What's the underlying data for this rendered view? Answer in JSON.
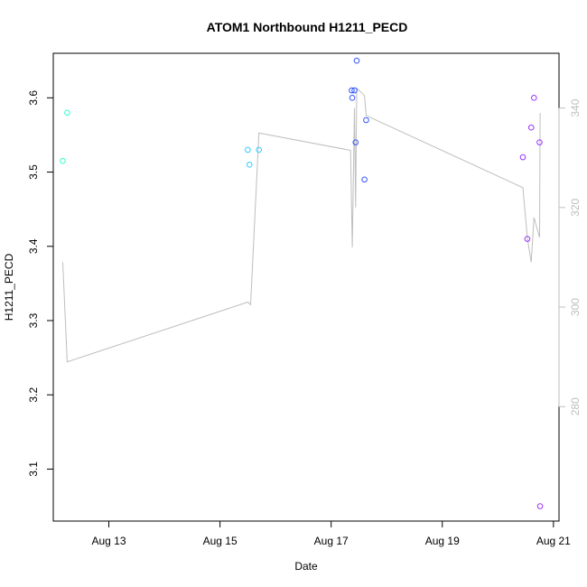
{
  "chart_data": {
    "type": "scatter",
    "title": "ATOM1 Northbound H1211_PECD",
    "xlabel": "Date",
    "ylabel": "H1211_PECD",
    "x_ticks": [
      {
        "day": 13,
        "label": "Aug 13"
      },
      {
        "day": 15,
        "label": "Aug 15"
      },
      {
        "day": 17,
        "label": "Aug 17"
      },
      {
        "day": 19,
        "label": "Aug 19"
      },
      {
        "day": 21,
        "label": "Aug 21"
      }
    ],
    "xlim": [
      12.0,
      21.1
    ],
    "ylim": [
      3.03,
      3.66
    ],
    "y_ticks": [
      3.1,
      3.2,
      3.3,
      3.4,
      3.5,
      3.6
    ],
    "y_tick_labels": [
      "3.1",
      "3.2",
      "3.3",
      "3.4",
      "3.5",
      "3.6"
    ],
    "y2_ticks": [
      280,
      300,
      320,
      340
    ],
    "y2_tick_labels": [
      "280",
      "300",
      "320",
      "340"
    ],
    "y2lim": [
      257,
      351
    ],
    "points": [
      {
        "x": 12.17,
        "y": 3.515,
        "color": "#33ffcc"
      },
      {
        "x": 12.25,
        "y": 3.58,
        "color": "#33ffcc"
      },
      {
        "x": 15.5,
        "y": 3.53,
        "color": "#33ccff"
      },
      {
        "x": 15.53,
        "y": 3.51,
        "color": "#33ccff"
      },
      {
        "x": 15.7,
        "y": 3.53,
        "color": "#33ccff"
      },
      {
        "x": 17.37,
        "y": 3.61,
        "color": "#3355ff"
      },
      {
        "x": 17.38,
        "y": 3.6,
        "color": "#3355ff"
      },
      {
        "x": 17.42,
        "y": 3.61,
        "color": "#3355ff"
      },
      {
        "x": 17.44,
        "y": 3.54,
        "color": "#3355ff"
      },
      {
        "x": 17.46,
        "y": 3.65,
        "color": "#3355ff"
      },
      {
        "x": 17.6,
        "y": 3.49,
        "color": "#3355ff"
      },
      {
        "x": 17.63,
        "y": 3.57,
        "color": "#3355ff"
      },
      {
        "x": 20.45,
        "y": 3.52,
        "color": "#9933ff"
      },
      {
        "x": 20.53,
        "y": 3.41,
        "color": "#9933ff"
      },
      {
        "x": 20.6,
        "y": 3.56,
        "color": "#9933ff"
      },
      {
        "x": 20.65,
        "y": 3.6,
        "color": "#9933ff"
      },
      {
        "x": 20.75,
        "y": 3.54,
        "color": "#9933ff"
      },
      {
        "x": 20.76,
        "y": 3.05,
        "color": "#9933ff"
      }
    ],
    "secondary_line": {
      "color": "#bebebe",
      "points": [
        {
          "x": 12.17,
          "y2": 309
        },
        {
          "x": 12.25,
          "y2": 289
        },
        {
          "x": 15.5,
          "y2": 301
        },
        {
          "x": 15.55,
          "y2": 300.5
        },
        {
          "x": 15.7,
          "y2": 335
        },
        {
          "x": 17.35,
          "y2": 331.5
        },
        {
          "x": 17.38,
          "y2": 312
        },
        {
          "x": 17.42,
          "y2": 340
        },
        {
          "x": 17.44,
          "y2": 320
        },
        {
          "x": 17.46,
          "y2": 344
        },
        {
          "x": 17.6,
          "y2": 342.5
        },
        {
          "x": 17.63,
          "y2": 338.5
        },
        {
          "x": 20.45,
          "y2": 324
        },
        {
          "x": 20.53,
          "y2": 314
        },
        {
          "x": 20.6,
          "y2": 309
        },
        {
          "x": 20.65,
          "y2": 318
        },
        {
          "x": 20.75,
          "y2": 314
        },
        {
          "x": 20.76,
          "y2": 339
        }
      ]
    },
    "grid": false,
    "legend": "none"
  }
}
